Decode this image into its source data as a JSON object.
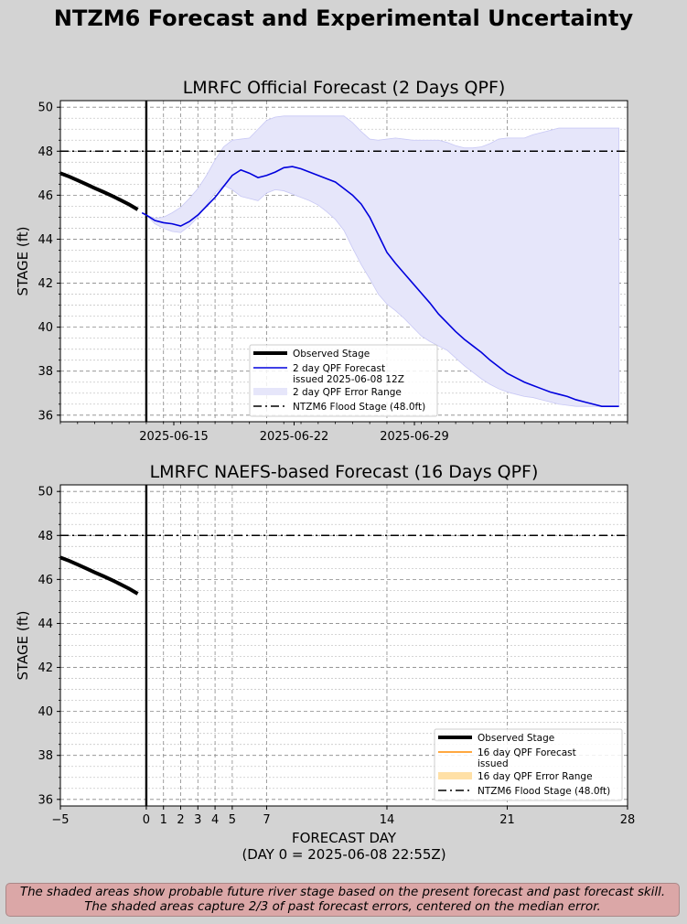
{
  "figure_title": "NTZM6 Forecast and Experimental Uncertainty",
  "footnote": {
    "line1": "The shaded areas show probable future river stage based on the present forecast and past forecast skill.",
    "line2": "The shaded areas capture 2/3 of past forecast errors, centered on the median error."
  },
  "colors": {
    "observed": "#000000",
    "forecast_2day": "#0000dd",
    "band_2day": "#e6e6fa",
    "forecast_16day": "#ff8c00",
    "band_16day": "#ffe0a6",
    "flood_stage": "#000000",
    "background": "#d3d3d3"
  },
  "chart_data": [
    {
      "type": "line",
      "title": "LMRFC Official Forecast (2 Days QPF)",
      "xlabel": "",
      "ylabel": "STAGE (ft)",
      "xlim": [
        -5,
        28
      ],
      "ylim": [
        35.7,
        50.3
      ],
      "yticks": [
        36,
        38,
        40,
        42,
        44,
        46,
        48,
        50
      ],
      "xticks_top": [
        {
          "x": 1.6,
          "label": "2025-06-15"
        },
        {
          "x": 8.6,
          "label": "2025-06-22"
        },
        {
          "x": 15.6,
          "label": "2025-06-29"
        }
      ],
      "flood_stage": 48.0,
      "legend_position": "lower center",
      "legend": [
        {
          "name": "Observed Stage",
          "style": "observed"
        },
        {
          "name": "2 day QPF Forecast",
          "name2": "issued 2025-06-08 12Z",
          "style": "forecast"
        },
        {
          "name": "2 day QPF Error Range",
          "style": "band"
        },
        {
          "name": "NTZM6 Flood Stage (48.0ft)",
          "style": "flood"
        }
      ],
      "series": [
        {
          "name": "Observed Stage",
          "x": [
            -5,
            -4.5,
            -4,
            -3.5,
            -3,
            -2.5,
            -2,
            -1.5,
            -1,
            -0.5
          ],
          "y": [
            47.0,
            46.85,
            46.68,
            46.5,
            46.32,
            46.15,
            45.97,
            45.78,
            45.58,
            45.35
          ]
        },
        {
          "name": "2 day QPF Forecast",
          "x": [
            -0.25,
            0,
            0.5,
            1,
            1.5,
            2,
            2.5,
            3,
            3.5,
            4,
            4.5,
            5,
            5.5,
            6,
            6.5,
            7,
            7.5,
            8,
            8.5,
            9,
            9.5,
            10,
            10.5,
            11,
            11.5,
            12,
            12.5,
            13,
            13.5,
            14,
            14.5,
            15,
            15.5,
            16,
            16.5,
            17,
            17.5,
            18,
            18.5,
            19,
            19.5,
            20,
            20.5,
            21,
            21.5,
            22,
            22.5,
            23,
            23.5,
            24,
            24.5,
            25,
            25.5,
            26,
            26.5,
            27,
            27.5
          ],
          "y": [
            45.2,
            45.1,
            44.85,
            44.75,
            44.7,
            44.6,
            44.8,
            45.1,
            45.5,
            45.9,
            46.4,
            46.9,
            47.15,
            47.0,
            46.8,
            46.9,
            47.05,
            47.25,
            47.3,
            47.2,
            47.05,
            46.9,
            46.75,
            46.6,
            46.3,
            46.0,
            45.6,
            45.0,
            44.2,
            43.4,
            42.9,
            42.45,
            42.0,
            41.55,
            41.1,
            40.6,
            40.2,
            39.8,
            39.45,
            39.15,
            38.85,
            38.5,
            38.2,
            37.9,
            37.7,
            37.5,
            37.35,
            37.2,
            37.05,
            36.95,
            36.85,
            36.7,
            36.6,
            36.5,
            36.4,
            36.4,
            36.4
          ],
          "upper": [
            45.2,
            45.1,
            44.95,
            45.0,
            45.2,
            45.45,
            45.85,
            46.3,
            46.9,
            47.6,
            48.2,
            48.5,
            48.55,
            48.6,
            49.0,
            49.4,
            49.55,
            49.6,
            49.6,
            49.6,
            49.6,
            49.6,
            49.6,
            49.6,
            49.6,
            49.3,
            48.9,
            48.55,
            48.5,
            48.55,
            48.6,
            48.55,
            48.5,
            48.5,
            48.5,
            48.5,
            48.4,
            48.25,
            48.15,
            48.15,
            48.2,
            48.35,
            48.55,
            48.6,
            48.6,
            48.6,
            48.75,
            48.85,
            48.95,
            49.05,
            49.05,
            49.05,
            49.05,
            49.05,
            49.05,
            49.05,
            49.05
          ],
          "lower": [
            45.2,
            45.1,
            44.7,
            44.5,
            44.35,
            44.3,
            44.6,
            45.0,
            45.55,
            46.1,
            46.45,
            46.25,
            45.95,
            45.85,
            45.75,
            46.1,
            46.25,
            46.2,
            46.05,
            45.9,
            45.75,
            45.55,
            45.25,
            44.9,
            44.4,
            43.6,
            42.85,
            42.2,
            41.5,
            41.05,
            40.75,
            40.4,
            40.0,
            39.6,
            39.35,
            39.15,
            38.95,
            38.6,
            38.25,
            37.95,
            37.65,
            37.4,
            37.2,
            37.05,
            36.95,
            36.85,
            36.8,
            36.7,
            36.6,
            36.5,
            36.45,
            36.4,
            36.4,
            36.4,
            36.4,
            36.4,
            36.4
          ]
        }
      ]
    },
    {
      "type": "line",
      "title": "LMRFC NAEFS-based Forecast (16 Days QPF)",
      "xlabel": "FORECAST DAY",
      "xlabel2": "(DAY 0 = 2025-06-08 22:55Z)",
      "ylabel": "STAGE (ft)",
      "xlim": [
        -5,
        28
      ],
      "ylim": [
        35.7,
        50.3
      ],
      "yticks": [
        36,
        38,
        40,
        42,
        44,
        46,
        48,
        50
      ],
      "xticks": [
        -5,
        0,
        1,
        2,
        3,
        4,
        5,
        7,
        14,
        21,
        28
      ],
      "xticklabels": [
        "−5",
        "0",
        "1",
        "2",
        "3",
        "4",
        "5",
        "7",
        "14",
        "21",
        "28"
      ],
      "flood_stage": 48.0,
      "legend_position": "lower right",
      "legend": [
        {
          "name": "Observed Stage",
          "style": "observed"
        },
        {
          "name": "16 day QPF Forecast",
          "name2": "issued",
          "style": "forecast"
        },
        {
          "name": "16 day QPF Error Range",
          "style": "band"
        },
        {
          "name": "NTZM6 Flood Stage (48.0ft)",
          "style": "flood"
        }
      ],
      "series": [
        {
          "name": "Observed Stage",
          "x": [
            -5,
            -4.5,
            -4,
            -3.5,
            -3,
            -2.5,
            -2,
            -1.5,
            -1,
            -0.5
          ],
          "y": [
            47.0,
            46.85,
            46.68,
            46.5,
            46.32,
            46.15,
            45.97,
            45.78,
            45.58,
            45.35
          ]
        }
      ]
    }
  ]
}
